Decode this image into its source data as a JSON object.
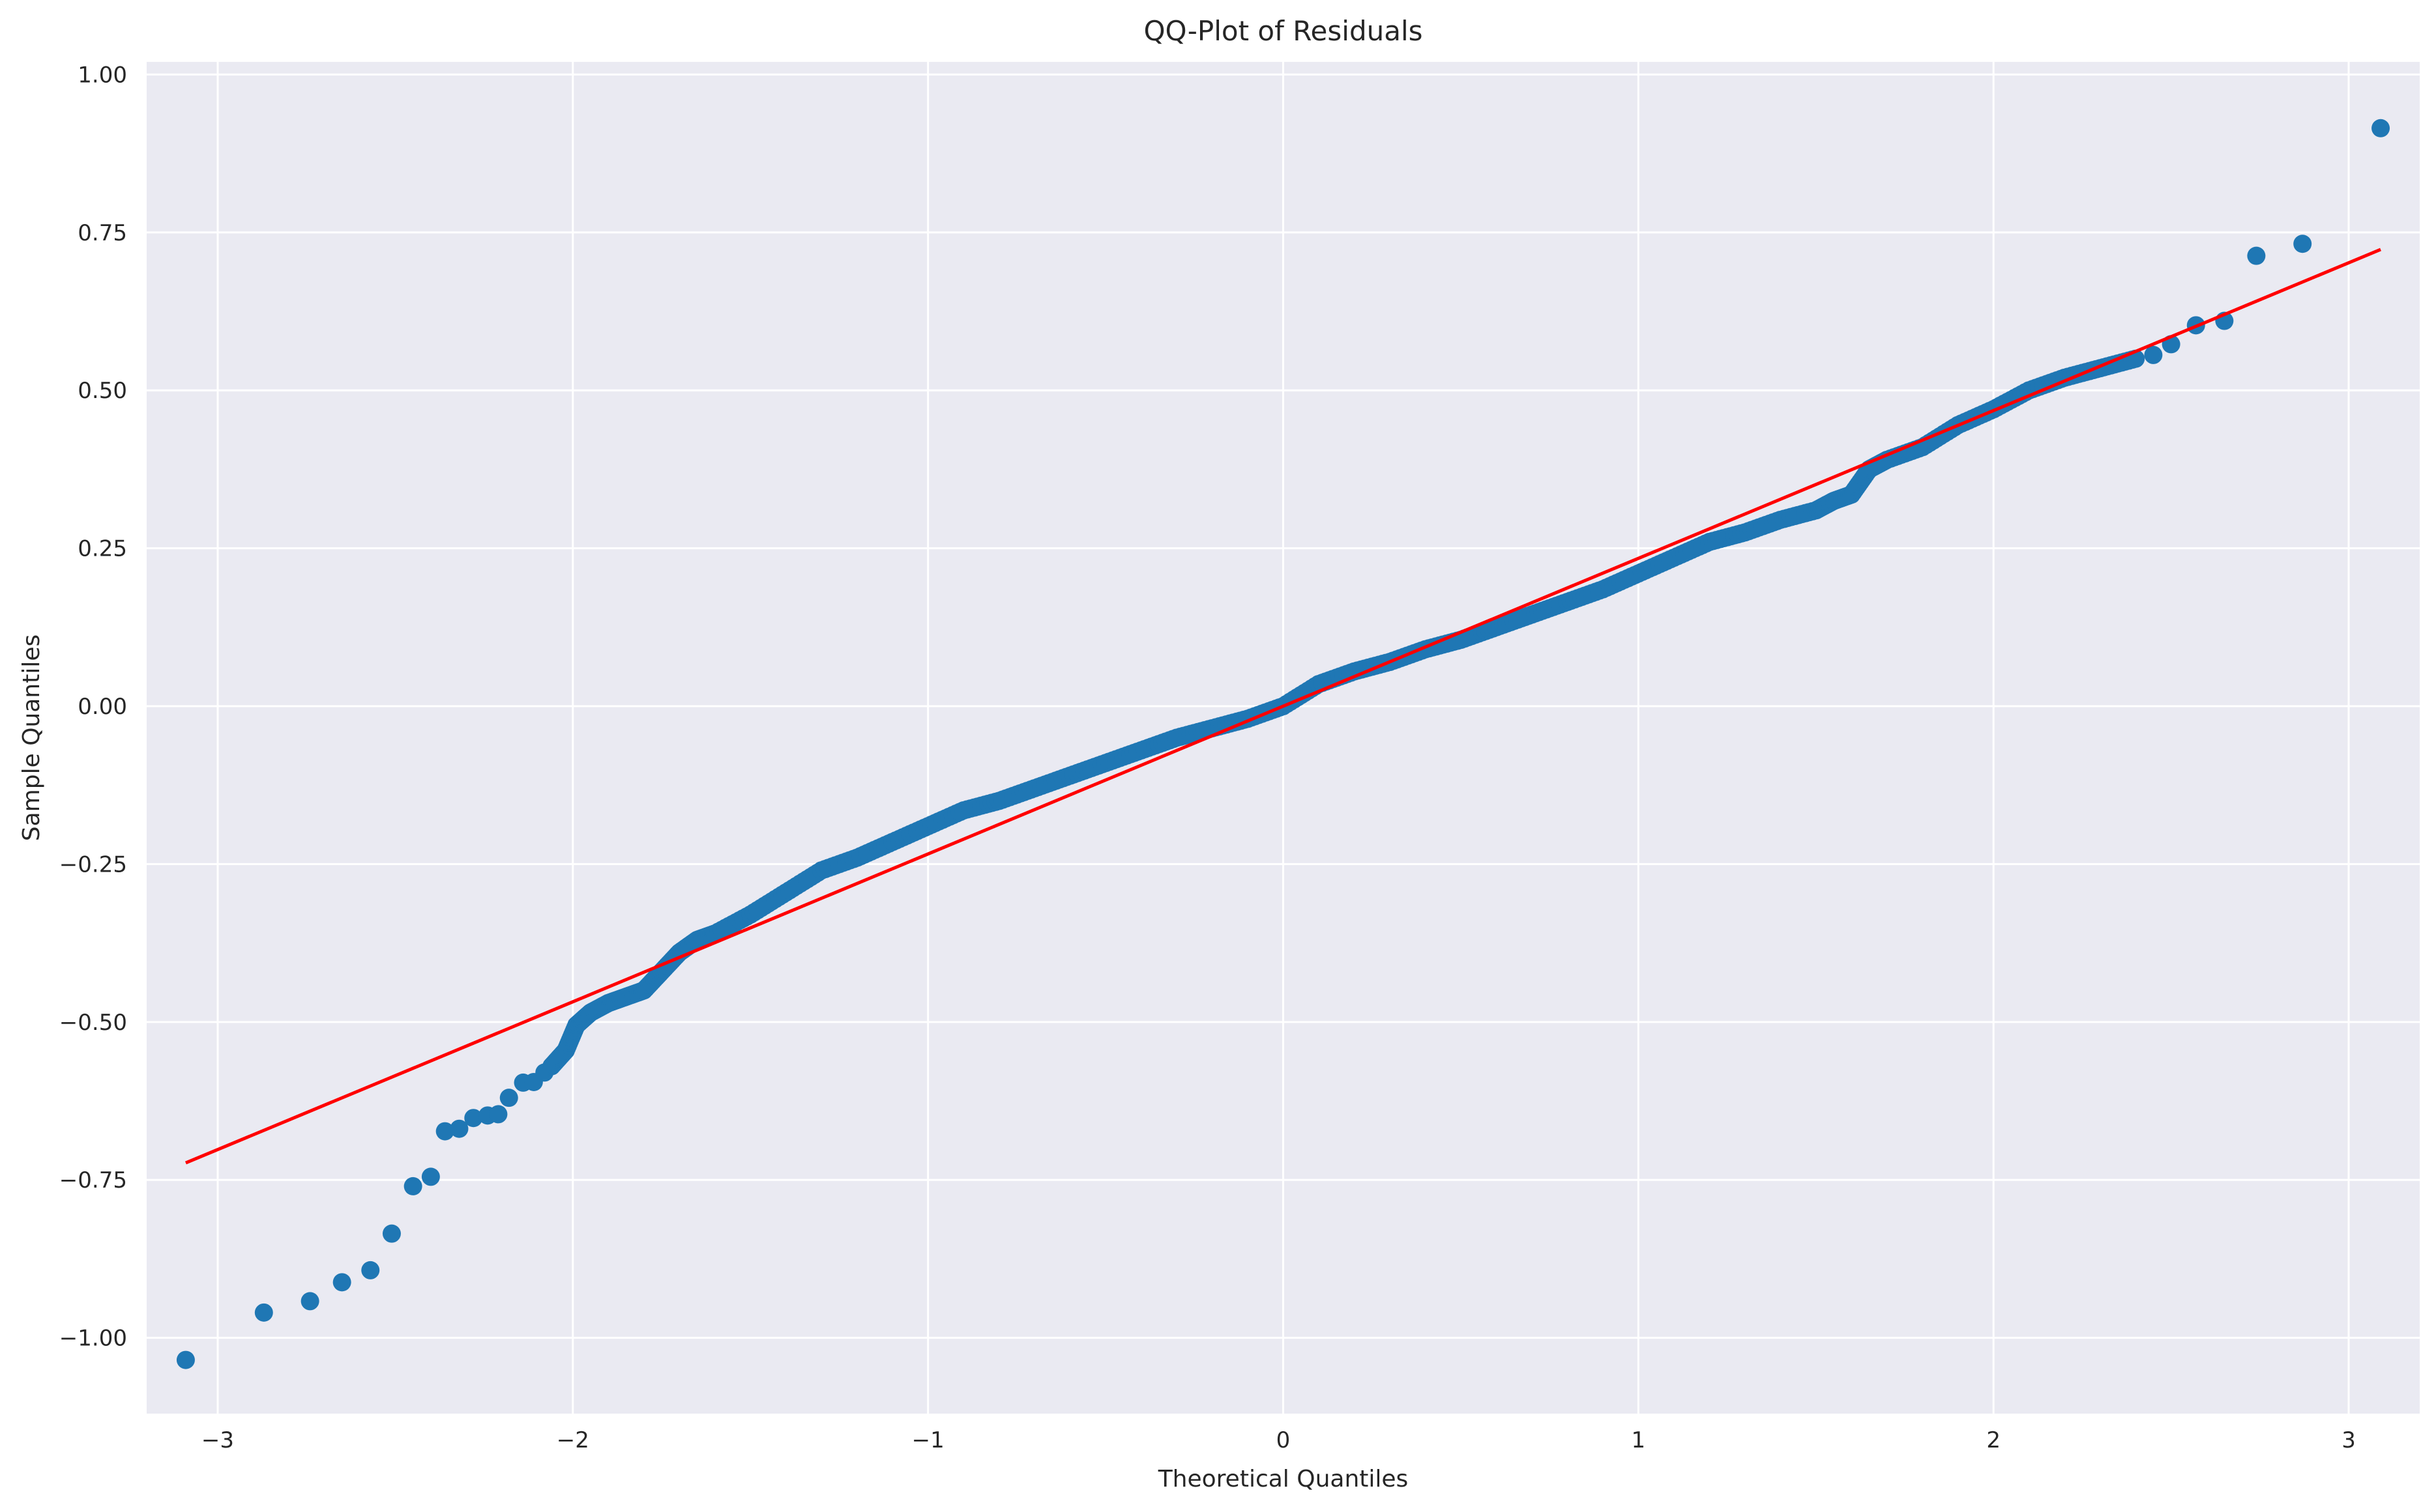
{
  "chart_data": {
    "type": "scatter",
    "title": "QQ-Plot of Residuals",
    "xlabel": "Theoretical Quantiles",
    "ylabel": "Sample Quantiles",
    "xlim": [
      -3.2,
      3.2
    ],
    "ylim": [
      -1.12,
      1.02
    ],
    "xticks": [
      -3,
      -2,
      -1,
      0,
      1,
      2,
      3
    ],
    "xtick_labels": [
      "−3",
      "−2",
      "−1",
      "0",
      "1",
      "2",
      "3"
    ],
    "yticks": [
      -1.0,
      -0.75,
      -0.5,
      -0.25,
      0.0,
      0.25,
      0.5,
      0.75,
      1.0
    ],
    "ytick_labels": [
      "−1.00",
      "−0.75",
      "−0.50",
      "−0.25",
      "0.00",
      "0.25",
      "0.50",
      "0.75",
      "1.00"
    ],
    "grid": true,
    "background_color": "#EAEAF2",
    "marker_color": "#1f77b4",
    "line_color": "#ff0000",
    "reference_line": {
      "x": [
        -3.09,
        3.09
      ],
      "y": [
        -0.723,
        0.723
      ]
    },
    "outlier_points": {
      "x": [
        -3.09,
        -2.87,
        -2.74,
        -2.65,
        -2.57,
        -2.51,
        -2.45,
        -2.4,
        -2.36,
        -2.32,
        -2.28,
        -2.24,
        -2.21,
        -2.18,
        -2.14,
        -2.11,
        -2.08
      ],
      "y": [
        -1.035,
        -0.96,
        -0.942,
        -0.912,
        -0.893,
        -0.835,
        -0.76,
        -0.745,
        -0.673,
        -0.669,
        -0.652,
        -0.648,
        -0.646,
        -0.62,
        -0.596,
        -0.595,
        -0.58
      ],
      "x_right": [
        2.45,
        2.5,
        2.57,
        2.65,
        2.74,
        2.87,
        3.09
      ],
      "y_right": [
        0.556,
        0.573,
        0.603,
        0.61,
        0.713,
        0.732,
        0.915
      ]
    },
    "curve_points": {
      "x": [
        -2.06,
        -2.02,
        -1.99,
        -1.95,
        -1.9,
        -1.85,
        -1.8,
        -1.75,
        -1.7,
        -1.65,
        -1.6,
        -1.5,
        -1.4,
        -1.3,
        -1.2,
        -1.1,
        -1.0,
        -0.9,
        -0.8,
        -0.7,
        -0.6,
        -0.5,
        -0.4,
        -0.3,
        -0.2,
        -0.1,
        0.0,
        0.1,
        0.2,
        0.3,
        0.4,
        0.5,
        0.6,
        0.7,
        0.8,
        0.9,
        1.0,
        1.1,
        1.2,
        1.3,
        1.4,
        1.5,
        1.55,
        1.6,
        1.65,
        1.7,
        1.8,
        1.9,
        2.0,
        2.1,
        2.2,
        2.3,
        2.4
      ],
      "y": [
        -0.57,
        -0.545,
        -0.505,
        -0.485,
        -0.47,
        -0.46,
        -0.45,
        -0.42,
        -0.39,
        -0.37,
        -0.36,
        -0.33,
        -0.295,
        -0.26,
        -0.24,
        -0.215,
        -0.19,
        -0.165,
        -0.15,
        -0.13,
        -0.11,
        -0.09,
        -0.07,
        -0.05,
        -0.035,
        -0.02,
        0.0,
        0.035,
        0.055,
        0.07,
        0.09,
        0.105,
        0.125,
        0.145,
        0.165,
        0.185,
        0.21,
        0.235,
        0.26,
        0.275,
        0.295,
        0.31,
        0.325,
        0.335,
        0.375,
        0.39,
        0.41,
        0.445,
        0.47,
        0.5,
        0.52,
        0.535,
        0.55
      ]
    }
  }
}
